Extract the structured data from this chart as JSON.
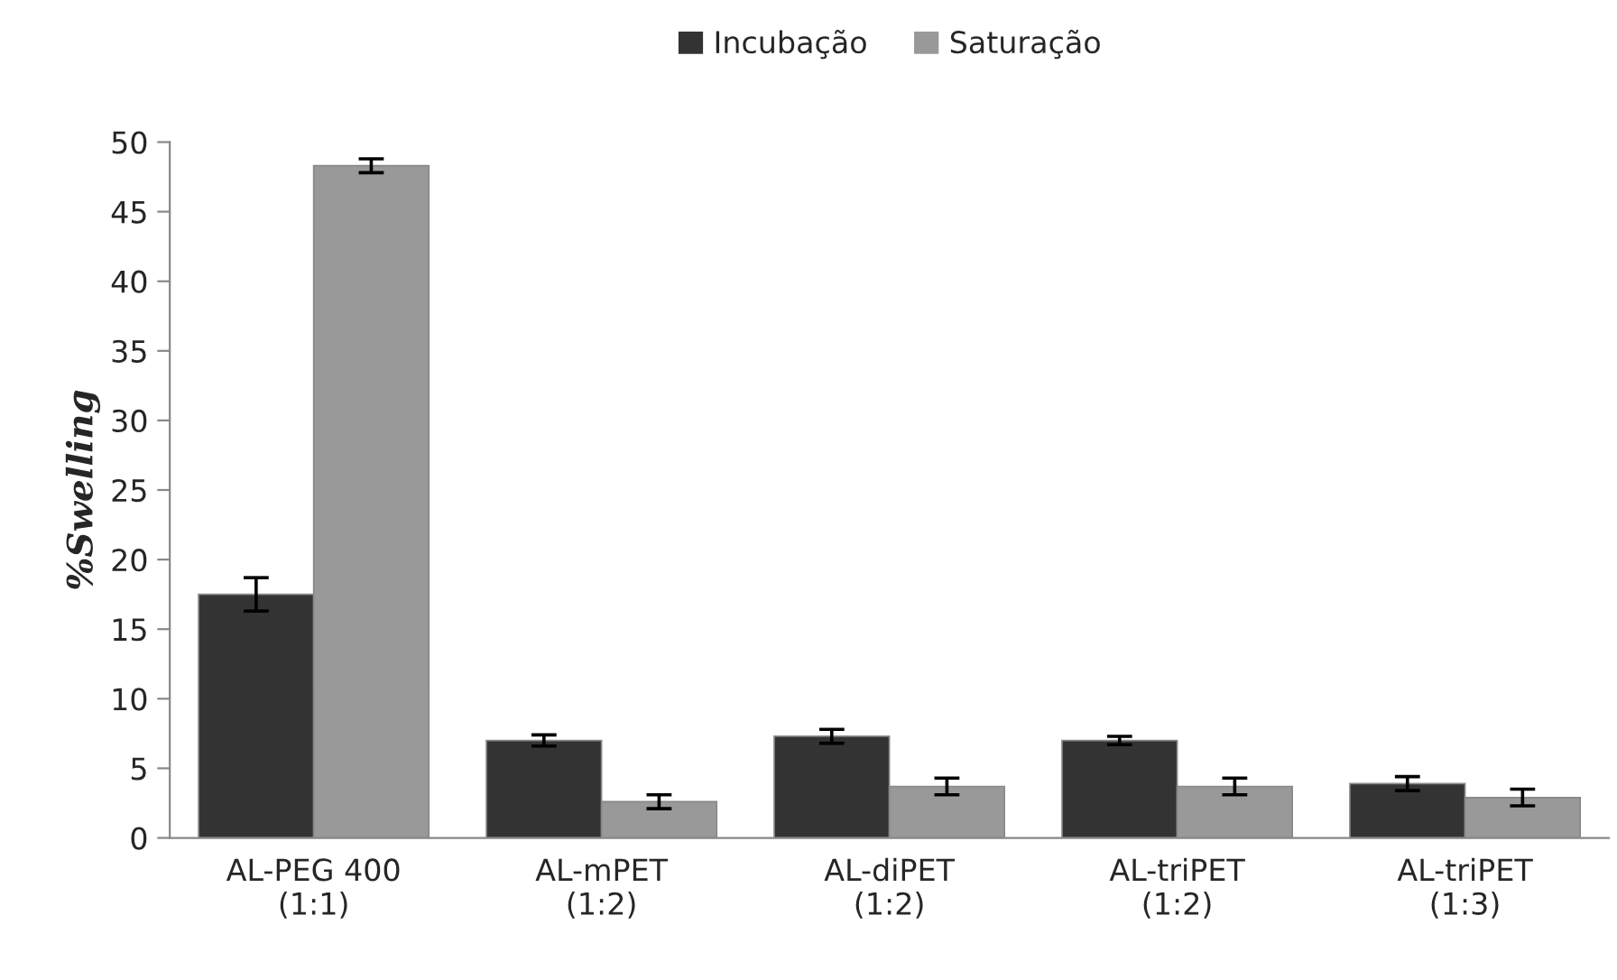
{
  "chart_data": {
    "type": "bar",
    "ylabel": "%Swelling",
    "categories": [
      "AL-PEG 400\n(1:1)",
      "AL-mPET\n(1:2)",
      "AL-diPET\n(1:2)",
      "AL-triPET\n(1:2)",
      "AL-triPET\n(1:3)"
    ],
    "series": [
      {
        "name": "Incubação",
        "color": "#333333",
        "values": [
          17.5,
          7.0,
          7.3,
          7.0,
          3.9
        ],
        "errors": [
          1.2,
          0.4,
          0.5,
          0.3,
          0.5
        ]
      },
      {
        "name": "Saturação",
        "color": "#999999",
        "values": [
          48.3,
          2.6,
          3.7,
          3.7,
          2.9
        ],
        "errors": [
          0.5,
          0.5,
          0.6,
          0.6,
          0.6
        ]
      }
    ],
    "ylim": [
      0,
      50
    ],
    "yticks": [
      0,
      5,
      10,
      15,
      20,
      25,
      30,
      35,
      40,
      45,
      50
    ],
    "grid": false,
    "legend": "top"
  }
}
